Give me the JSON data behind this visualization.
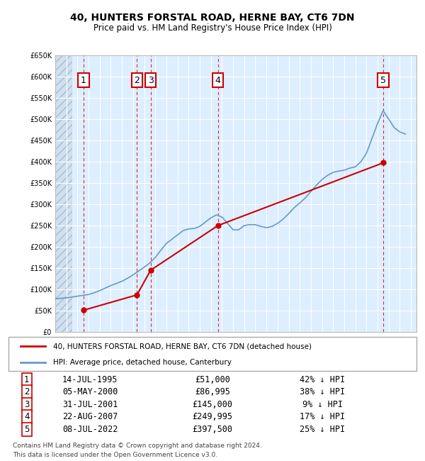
{
  "title": "40, HUNTERS FORSTAL ROAD, HERNE BAY, CT6 7DN",
  "subtitle": "Price paid vs. HM Land Registry's House Price Index (HPI)",
  "legend_line1": "40, HUNTERS FORSTAL ROAD, HERNE BAY, CT6 7DN (detached house)",
  "legend_line2": "HPI: Average price, detached house, Canterbury",
  "footer_line1": "Contains HM Land Registry data © Crown copyright and database right 2024.",
  "footer_line2": "This data is licensed under the Open Government Licence v3.0.",
  "xlim": [
    1993,
    2025.5
  ],
  "ylim": [
    0,
    650000
  ],
  "yticks": [
    0,
    50000,
    100000,
    150000,
    200000,
    250000,
    300000,
    350000,
    400000,
    450000,
    500000,
    550000,
    600000,
    650000
  ],
  "ytick_labels": [
    "£0",
    "£50K",
    "£100K",
    "£150K",
    "£200K",
    "£250K",
    "£300K",
    "£350K",
    "£400K",
    "£450K",
    "£500K",
    "£550K",
    "£600K",
    "£650K"
  ],
  "sales": [
    {
      "num": 1,
      "date": "14-JUL-1995",
      "year": 1995.54,
      "price": 51000,
      "pct": "42%"
    },
    {
      "num": 2,
      "date": "05-MAY-2000",
      "year": 2000.35,
      "price": 86995,
      "pct": "38%"
    },
    {
      "num": 3,
      "date": "31-JUL-2001",
      "year": 2001.58,
      "price": 145000,
      "pct": "9%"
    },
    {
      "num": 4,
      "date": "22-AUG-2007",
      "year": 2007.64,
      "price": 249995,
      "pct": "17%"
    },
    {
      "num": 5,
      "date": "08-JUL-2022",
      "year": 2022.52,
      "price": 397500,
      "pct": "25%"
    }
  ],
  "table_rows": [
    {
      "num": 1,
      "date": "14-JUL-1995",
      "price": "£51,000",
      "pct": "42% ↓ HPI"
    },
    {
      "num": 2,
      "date": "05-MAY-2000",
      "price": "£86,995",
      "pct": "38% ↓ HPI"
    },
    {
      "num": 3,
      "date": "31-JUL-2001",
      "price": "£145,000",
      "pct": "9% ↓ HPI"
    },
    {
      "num": 4,
      "date": "22-AUG-2007",
      "price": "£249,995",
      "pct": "17% ↓ HPI"
    },
    {
      "num": 5,
      "date": "08-JUL-2022",
      "price": "£397,500",
      "pct": "25% ↓ HPI"
    }
  ],
  "red_color": "#cc0000",
  "blue_color": "#6699cc",
  "bg_color": "#ddeeff",
  "hatch_color": "#bbccdd",
  "grid_color": "#ffffff",
  "hpi_line": {
    "years": [
      1993.0,
      1993.5,
      1994.0,
      1994.5,
      1995.0,
      1995.5,
      1996.0,
      1996.5,
      1997.0,
      1997.5,
      1998.0,
      1998.5,
      1999.0,
      1999.5,
      2000.0,
      2000.5,
      2001.0,
      2001.5,
      2002.0,
      2002.5,
      2003.0,
      2003.5,
      2004.0,
      2004.5,
      2005.0,
      2005.5,
      2006.0,
      2006.5,
      2007.0,
      2007.5,
      2008.0,
      2008.5,
      2009.0,
      2009.5,
      2010.0,
      2010.5,
      2011.0,
      2011.5,
      2012.0,
      2012.5,
      2013.0,
      2013.5,
      2014.0,
      2014.5,
      2015.0,
      2015.5,
      2016.0,
      2016.5,
      2017.0,
      2017.5,
      2018.0,
      2018.5,
      2019.0,
      2019.5,
      2020.0,
      2020.5,
      2021.0,
      2021.5,
      2022.0,
      2022.5,
      2023.0,
      2023.5,
      2024.0,
      2024.5
    ],
    "values": [
      78000,
      79000,
      80000,
      82000,
      84000,
      86000,
      88000,
      92000,
      97000,
      103000,
      109000,
      114000,
      119000,
      126000,
      134000,
      143000,
      152000,
      162000,
      175000,
      192000,
      208000,
      218000,
      228000,
      238000,
      242000,
      243000,
      248000,
      258000,
      268000,
      275000,
      270000,
      255000,
      240000,
      240000,
      250000,
      252000,
      252000,
      248000,
      245000,
      248000,
      255000,
      265000,
      278000,
      292000,
      303000,
      315000,
      330000,
      345000,
      358000,
      368000,
      375000,
      378000,
      380000,
      385000,
      388000,
      400000,
      420000,
      455000,
      490000,
      520000,
      500000,
      480000,
      470000,
      465000
    ]
  },
  "price_line": {
    "years": [
      1995.54,
      2000.35,
      2001.58,
      2007.64,
      2022.52
    ],
    "values": [
      51000,
      86995,
      145000,
      249995,
      397500
    ]
  }
}
